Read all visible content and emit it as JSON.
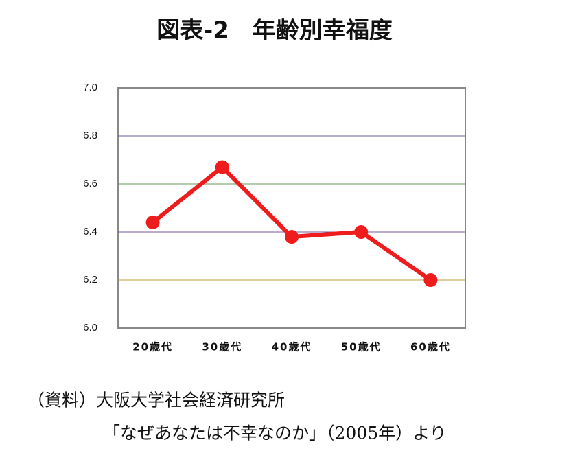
{
  "chart_data": {
    "type": "line",
    "title": "図表-2　年齢別幸福度",
    "categories": [
      "20歳代",
      "30歳代",
      "40歳代",
      "50歳代",
      "60歳代"
    ],
    "series": [
      {
        "name": "幸福度",
        "color": "#ee1c1c",
        "values": [
          6.44,
          6.67,
          6.38,
          6.4,
          6.2
        ]
      }
    ],
    "ylim": [
      6.0,
      7.0
    ],
    "yticks": [
      {
        "value": 6,
        "label": "6.0"
      },
      6.2,
      6.4,
      6.6,
      6.8,
      {
        "value": 7,
        "label": "7.0"
      }
    ],
    "grid": true,
    "source": [
      "（資料）大阪大学社会経済研究所",
      "「なぜあなたは不幸なのか」（2005年）より"
    ]
  }
}
